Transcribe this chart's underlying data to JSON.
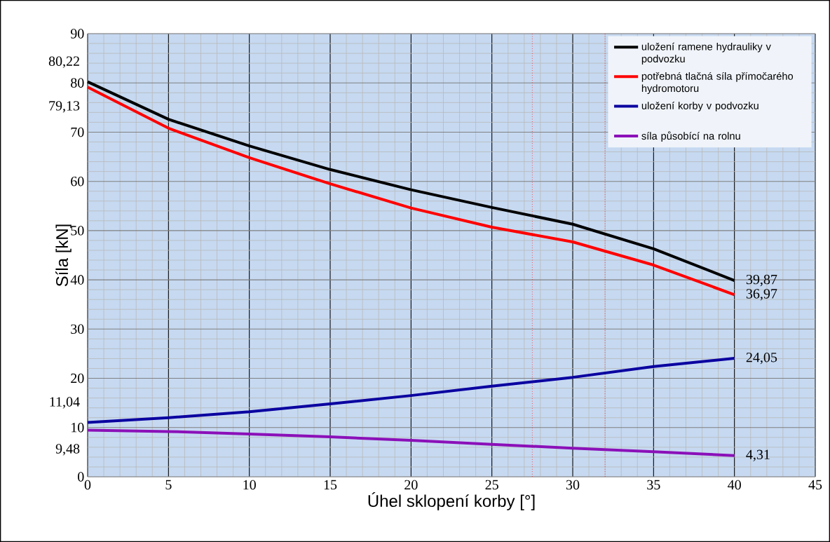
{
  "chart_data": {
    "type": "line",
    "xlabel": "Úhel sklopení korby [°]",
    "ylabel": "Síla [kN]",
    "x": [
      0,
      5,
      10,
      15,
      20,
      25,
      30,
      35,
      40
    ],
    "series": [
      {
        "name": "uložení ramene hydrauliky v podvozku",
        "color": "#000000",
        "values": [
          80.22,
          72.6,
          67.2,
          62.4,
          58.3,
          54.7,
          51.3,
          46.3,
          39.87
        ],
        "value_labels": [
          "80,22",
          null,
          null,
          null,
          null,
          null,
          null,
          null,
          "39,87"
        ]
      },
      {
        "name": "potřebná tlačná síla přímočarého hydromotoru",
        "color": "#ff0000",
        "values": [
          79.13,
          70.8,
          64.8,
          59.5,
          54.6,
          50.7,
          47.7,
          43.0,
          36.97
        ],
        "value_labels": [
          "79,13",
          null,
          null,
          null,
          null,
          null,
          null,
          null,
          "36,97"
        ]
      },
      {
        "name": "uložení korby v podvozku",
        "color": "#0a00a0",
        "values": [
          11.04,
          12.0,
          13.2,
          14.8,
          16.5,
          18.4,
          20.2,
          22.4,
          24.05
        ],
        "value_labels": [
          "11,04",
          null,
          null,
          null,
          null,
          null,
          null,
          null,
          "24,05"
        ]
      },
      {
        "name": "síla působící na rolnu",
        "color": "#8b10b8",
        "values": [
          9.48,
          9.2,
          8.7,
          8.1,
          7.4,
          6.6,
          5.8,
          5.1,
          4.31
        ],
        "value_labels": [
          "9,48",
          null,
          null,
          null,
          null,
          null,
          null,
          null,
          "4,31"
        ]
      }
    ],
    "xlim": [
      0,
      45
    ],
    "ylim": [
      0,
      90
    ],
    "xticks": [
      0,
      5,
      10,
      15,
      20,
      25,
      30,
      35,
      40,
      45
    ],
    "yticks": [
      0,
      10,
      20,
      30,
      40,
      50,
      60,
      70,
      80,
      90
    ],
    "ref_lines": [
      {
        "axis": "x",
        "value": 27.5,
        "color": "#ff0000",
        "line_style": "dotted"
      },
      {
        "axis": "x",
        "value": 32,
        "color": "#ff0000",
        "line_style": "dotted"
      }
    ],
    "grid": true,
    "legend": "top right",
    "marker": "none",
    "line_style": "solid"
  }
}
